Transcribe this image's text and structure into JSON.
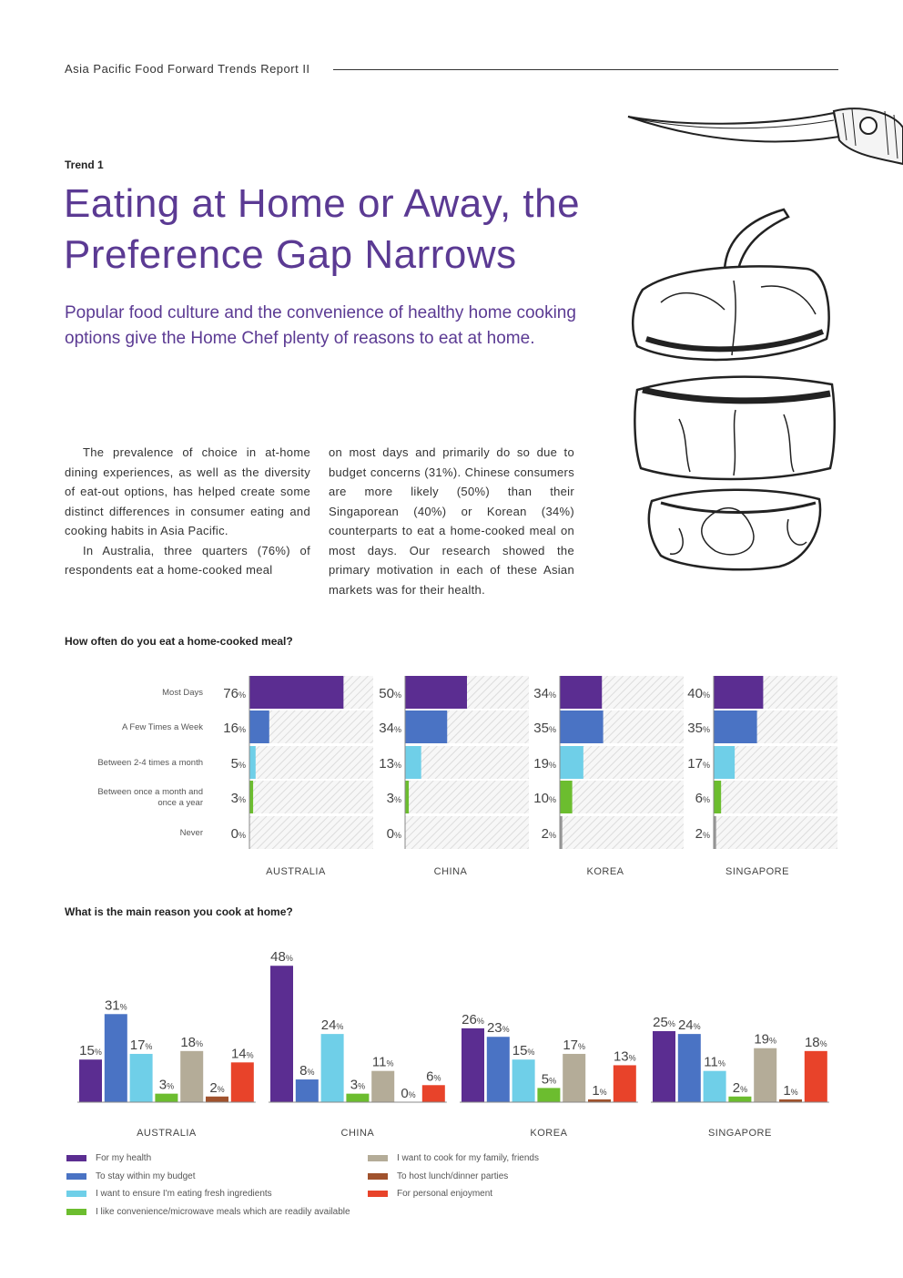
{
  "header": {
    "title": "Asia Pacific Food Forward Trends Report II"
  },
  "trend_label": "Trend 1",
  "title_lines": [
    "Eating at Home or Away, the",
    "Preference Gap Narrows"
  ],
  "subtitle_lines": [
    "Popular food culture and the convenience of healthy home cooking",
    "options give the Home Chef plenty of reasons to eat at home."
  ],
  "body": {
    "left_p1": "The prevalence of choice in at-home dining experiences, as well as the diversity of eat-out options, has helped create some distinct differences in consumer eating and cooking habits in Asia Pacific.",
    "left_p2": "In Australia, three quarters (76%) of respondents eat a home-cooked meal",
    "right_p1": "on most days and primarily do so due to budget concerns (31%). Chinese consumers are more likely (50%) than their Singaporean (40%) or Korean (34%) counterparts to eat a home-cooked meal on most days. Our research showed the primary motivation in each of these Asian markets was for their health."
  },
  "chart_data": [
    {
      "type": "bar",
      "orientation": "horizontal",
      "title": "How often do you eat a home-cooked meal?",
      "categories": [
        "Most Days",
        "A Few Times a Week",
        "Between 2-4 times a month",
        "Between once a month and once a year",
        "Never"
      ],
      "category_lines": [
        [
          "Most Days"
        ],
        [
          "A Few Times a Week"
        ],
        [
          "Between 2-4 times a month"
        ],
        [
          "Between once a month and",
          "once a year"
        ],
        [
          "Never"
        ]
      ],
      "groups": [
        "AUSTRALIA",
        "CHINA",
        "KOREA",
        "SINGAPORE"
      ],
      "values": [
        [
          76,
          16,
          5,
          3,
          0
        ],
        [
          50,
          34,
          13,
          3,
          0
        ],
        [
          34,
          35,
          19,
          10,
          2
        ],
        [
          40,
          35,
          17,
          6,
          2
        ]
      ],
      "colors": [
        "#5b2d91",
        "#4a73c4",
        "#6fcfe8",
        "#6cbd2f",
        "#999999"
      ],
      "unit": "%",
      "xlim": [
        0,
        100
      ]
    },
    {
      "type": "bar",
      "orientation": "vertical",
      "title": "What is the main reason you cook at home?",
      "groups": [
        "AUSTRALIA",
        "CHINA",
        "KOREA",
        "SINGAPORE"
      ],
      "series": [
        {
          "name": "For my health",
          "color": "#5b2d91",
          "values": [
            15,
            48,
            26,
            25
          ]
        },
        {
          "name": "To stay within my budget",
          "color": "#4a73c4",
          "values": [
            31,
            8,
            23,
            24
          ]
        },
        {
          "name": "I want to ensure I'm eating fresh ingredients",
          "color": "#6fcfe8",
          "values": [
            17,
            24,
            15,
            11
          ]
        },
        {
          "name": "I like convenience/microwave meals which are readily available",
          "color": "#6cbd2f",
          "values": [
            3,
            3,
            5,
            2
          ]
        },
        {
          "name": "I want to cook for my family, friends",
          "color": "#b4ac98",
          "values": [
            18,
            11,
            17,
            19
          ]
        },
        {
          "name": "To host lunch/dinner parties",
          "color": "#a0522d",
          "values": [
            2,
            0,
            1,
            1
          ]
        },
        {
          "name": "For personal enjoyment",
          "color": "#e8432a",
          "values": [
            14,
            6,
            13,
            18
          ]
        }
      ],
      "unit": "%",
      "ylim": [
        0,
        50
      ]
    }
  ]
}
